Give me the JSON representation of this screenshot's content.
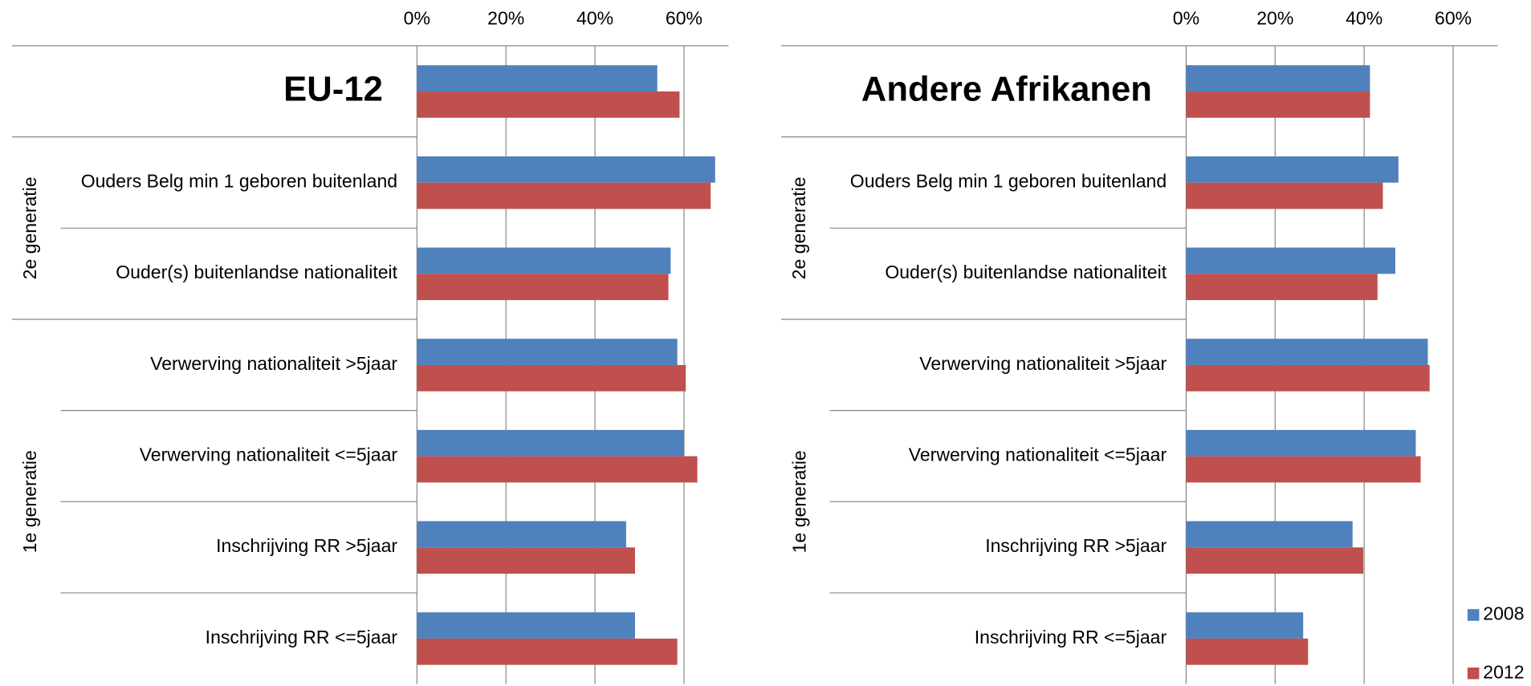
{
  "chart_data": [
    {
      "type": "bar",
      "orientation": "horizontal",
      "categories": [
        "EU-12",
        "Ouders Belg min 1 geboren buitenland",
        "Ouder(s) buitenlandse nationaliteit",
        "Verwerving nationaliteit >5jaar",
        "Verwerving nationaliteit <=5jaar",
        "Inschrijving RR >5jaar",
        "Inschrijving RR <=5jaar"
      ],
      "groups": [
        {
          "label": "2e generatie",
          "start": 1,
          "end": 2
        },
        {
          "label": "1e generatie",
          "start": 3,
          "end": 6
        }
      ],
      "series": [
        {
          "name": "2008",
          "color": "#4f81bd",
          "values": [
            54,
            67,
            57,
            58.5,
            60,
            47,
            49
          ]
        },
        {
          "name": "2012",
          "color": "#c0504d",
          "values": [
            59,
            66,
            56.5,
            60.4,
            63,
            49,
            58.5
          ]
        }
      ],
      "xlim": [
        0,
        70
      ],
      "xticks": [
        {
          "value": 0,
          "label": "0%"
        },
        {
          "value": 20,
          "label": "20%"
        },
        {
          "value": 40,
          "label": "40%"
        },
        {
          "value": 60,
          "label": "60%"
        }
      ],
      "grid": true
    },
    {
      "type": "bar",
      "orientation": "horizontal",
      "categories": [
        "Andere Afrikanen",
        "Ouders Belg min 1 geboren buitenland",
        "Ouder(s) buitenlandse nationaliteit",
        "Verwerving nationaliteit >5jaar",
        "Verwerving nationaliteit <=5jaar",
        "Inschrijving RR >5jaar",
        "Inschrijving RR <=5jaar"
      ],
      "groups": [
        {
          "label": "2e generatie",
          "start": 1,
          "end": 2
        },
        {
          "label": "1e generatie",
          "start": 3,
          "end": 6
        }
      ],
      "series": [
        {
          "name": "2008",
          "color": "#4f81bd",
          "values": [
            41.3,
            47.7,
            47,
            54.3,
            51.6,
            37.4,
            26.3
          ]
        },
        {
          "name": "2012",
          "color": "#c0504d",
          "values": [
            41.3,
            44.2,
            43,
            54.7,
            52.7,
            39.8,
            27.4
          ]
        }
      ],
      "xlim": [
        0,
        70
      ],
      "xticks": [
        {
          "value": 0,
          "label": "0%"
        },
        {
          "value": 20,
          "label": "20%"
        },
        {
          "value": 40,
          "label": "40%"
        },
        {
          "value": 60,
          "label": "60%"
        }
      ],
      "grid": true,
      "legend": "right"
    }
  ]
}
